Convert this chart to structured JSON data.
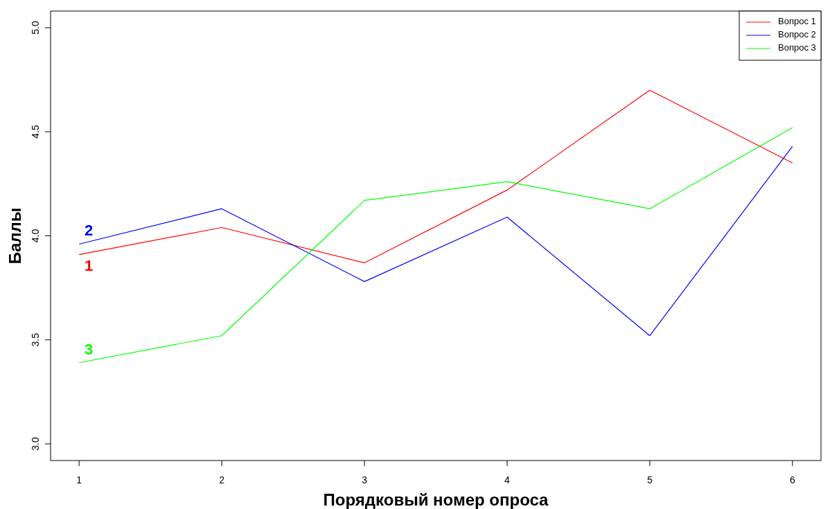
{
  "chart_data": {
    "type": "line",
    "xlabel": "Порядковый номер опроса",
    "ylabel": "Баллы",
    "x": [
      1,
      2,
      3,
      4,
      5,
      6
    ],
    "xlim": [
      0.8,
      6.2
    ],
    "xticks": [
      1,
      2,
      3,
      4,
      5,
      6
    ],
    "ylim": [
      2.92,
      5.08
    ],
    "yticks": [
      {
        "value": 3,
        "label": "3.0"
      },
      3.5,
      {
        "value": 4,
        "label": "4.0"
      },
      4.5,
      {
        "value": 5,
        "label": "5.0"
      }
    ],
    "series": [
      {
        "name": "Вопрос 1",
        "color": "#ff0000",
        "values": [
          3.91,
          4.04,
          3.87,
          4.22,
          4.7,
          4.35
        ]
      },
      {
        "name": "Вопрос 2",
        "color": "#0000ff",
        "values": [
          3.96,
          4.13,
          3.78,
          4.09,
          3.52,
          4.43
        ]
      },
      {
        "name": "Вопрос 3",
        "color": "#00ff00",
        "values": [
          3.39,
          3.52,
          4.17,
          4.26,
          4.13,
          4.52
        ]
      }
    ],
    "annotations": [
      "1",
      "2",
      "3"
    ],
    "legend": "top right",
    "grid": false,
    "marker": "none",
    "line_style": "solid"
  }
}
